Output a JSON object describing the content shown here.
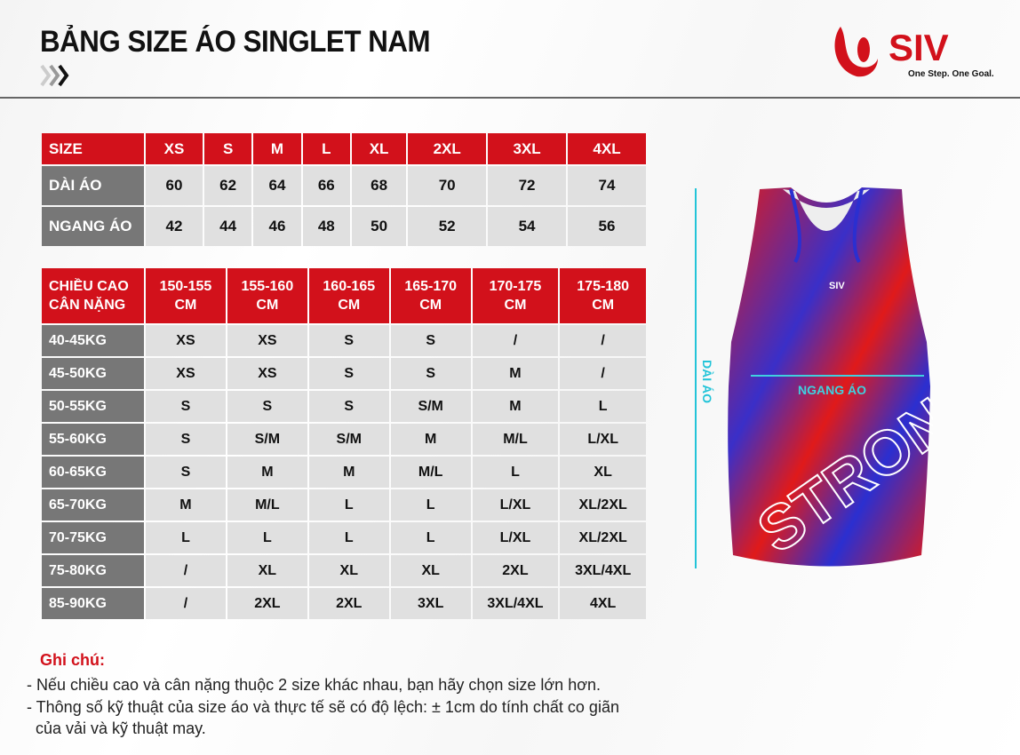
{
  "header": {
    "title": "BẢNG SIZE ÁO SINGLET NAM",
    "logo_text": "SIV",
    "logo_slogan": "One Step. One Goal."
  },
  "colors": {
    "accent": "#d2111b",
    "row_header": "#777777",
    "cell": "#e0e0e0",
    "measure": "#23c4d8"
  },
  "size_table": {
    "header": [
      "SIZE",
      "XS",
      "S",
      "M",
      "L",
      "XL",
      "2XL",
      "3XL",
      "4XL"
    ],
    "rows": [
      {
        "label": "DÀI ÁO",
        "values": [
          "60",
          "62",
          "64",
          "66",
          "68",
          "70",
          "72",
          "74"
        ]
      },
      {
        "label": "NGANG ÁO",
        "values": [
          "42",
          "44",
          "46",
          "48",
          "50",
          "52",
          "54",
          "56"
        ]
      }
    ]
  },
  "fit_table": {
    "corner": [
      "CHIỀU CAO",
      "CÂN NẶNG"
    ],
    "heights": [
      [
        "150-155",
        "CM"
      ],
      [
        "155-160",
        "CM"
      ],
      [
        "160-165",
        "CM"
      ],
      [
        "165-170",
        "CM"
      ],
      [
        "170-175",
        "CM"
      ],
      [
        "175-180",
        "CM"
      ]
    ],
    "rows": [
      {
        "label": "40-45KG",
        "values": [
          "XS",
          "XS",
          "S",
          "S",
          "/",
          "/"
        ]
      },
      {
        "label": "45-50KG",
        "values": [
          "XS",
          "XS",
          "S",
          "S",
          "M",
          "/"
        ]
      },
      {
        "label": "50-55KG",
        "values": [
          "S",
          "S",
          "S",
          "S/M",
          "M",
          "L"
        ]
      },
      {
        "label": "55-60KG",
        "values": [
          "S",
          "S/M",
          "S/M",
          "M",
          "M/L",
          "L/XL"
        ]
      },
      {
        "label": "60-65KG",
        "values": [
          "S",
          "M",
          "M",
          "M/L",
          "L",
          "XL"
        ]
      },
      {
        "label": "65-70KG",
        "values": [
          "M",
          "M/L",
          "L",
          "L",
          "L/XL",
          "XL/2XL"
        ]
      },
      {
        "label": "70-75KG",
        "values": [
          "L",
          "L",
          "L",
          "L",
          "L/XL",
          "XL/2XL"
        ]
      },
      {
        "label": "75-80KG",
        "values": [
          "/",
          "XL",
          "XL",
          "XL",
          "2XL",
          "3XL/4XL"
        ]
      },
      {
        "label": "85-90KG",
        "values": [
          "/",
          "2XL",
          "2XL",
          "3XL",
          "3XL/4XL",
          "4XL"
        ]
      }
    ]
  },
  "diagram": {
    "length_label": "DÀI ÁO",
    "width_label": "NGANG ÁO",
    "shirt_print": "SIV"
  },
  "notes": {
    "title": "Ghi chú:",
    "lines": [
      "- Nếu chiều cao và cân nặng thuộc 2 size khác nhau, bạn hãy chọn size lớn hơn.",
      "- Thông số kỹ thuật của size áo và thực tế sẽ có độ lệch:  ± 1cm do tính chất co giãn",
      "  của vải và kỹ thuật may."
    ]
  }
}
